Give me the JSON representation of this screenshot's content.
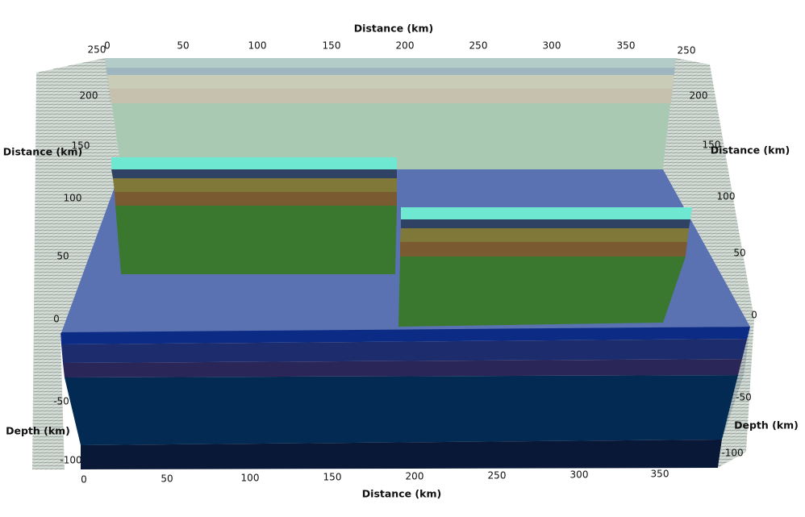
{
  "axes": {
    "top": {
      "title": "Distance (km)",
      "ticks": [
        0,
        50,
        100,
        150,
        200,
        250,
        300,
        350
      ]
    },
    "bottom": {
      "title": "Distance (km)",
      "ticks": [
        0,
        50,
        100,
        150,
        200,
        250,
        300,
        350
      ]
    },
    "left_distance": {
      "title": "Distance (km)",
      "ticks": [
        0,
        50,
        100,
        150,
        200,
        250
      ]
    },
    "right_distance": {
      "title": "Distance (km)",
      "ticks": [
        0,
        50,
        100,
        150,
        200,
        250
      ]
    },
    "left_depth": {
      "title": "Depth (km)",
      "ticks": [
        -50,
        -100
      ]
    },
    "right_depth": {
      "title": "Depth (km)",
      "ticks": [
        -50,
        -100
      ]
    }
  }
}
